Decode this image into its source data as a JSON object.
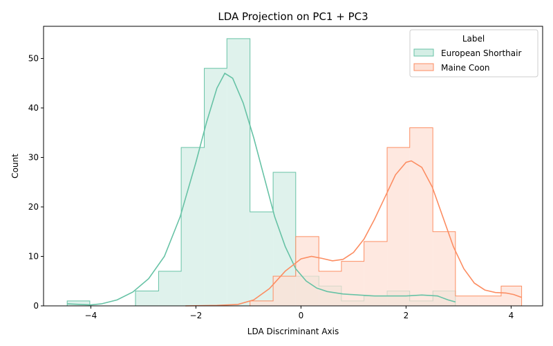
{
  "chart_data": {
    "type": "histogram",
    "title": "LDA Projection on PC1 + PC3",
    "xlabel": "LDA Discriminant Axis",
    "ylabel": "Count",
    "xlim": [
      -4.9,
      4.6
    ],
    "ylim": [
      0,
      56.5
    ],
    "xticks": [
      -4,
      -2,
      0,
      2,
      4
    ],
    "yticks": [
      0,
      10,
      20,
      30,
      40,
      50
    ],
    "grid": false,
    "legend": {
      "title": "Label",
      "placement": "top-right"
    },
    "series": [
      {
        "name": "European Shorthair",
        "color": "#66c2a5",
        "fill": "#d4eee5",
        "bin_edges": [
          -4.45,
          -4.02,
          -3.59,
          -3.15,
          -2.71,
          -2.28,
          -1.84,
          -1.41,
          -0.97,
          -0.53,
          -0.1,
          0.34,
          0.77,
          1.2,
          1.64,
          2.07,
          2.51,
          2.94
        ],
        "counts": [
          1,
          0,
          0,
          3,
          7,
          32,
          48,
          54,
          19,
          27,
          6,
          4,
          1,
          2,
          3,
          1,
          3
        ],
        "kde": [
          [
            -4.45,
            0.4
          ],
          [
            -4.2,
            0.3
          ],
          [
            -4.0,
            0.2
          ],
          [
            -3.8,
            0.4
          ],
          [
            -3.5,
            1.2
          ],
          [
            -3.2,
            2.8
          ],
          [
            -2.9,
            5.5
          ],
          [
            -2.6,
            10
          ],
          [
            -2.3,
            18
          ],
          [
            -2.0,
            29
          ],
          [
            -1.8,
            37
          ],
          [
            -1.6,
            44
          ],
          [
            -1.45,
            47
          ],
          [
            -1.3,
            46
          ],
          [
            -1.1,
            41
          ],
          [
            -0.9,
            34
          ],
          [
            -0.7,
            26
          ],
          [
            -0.5,
            18
          ],
          [
            -0.3,
            12
          ],
          [
            -0.1,
            7.5
          ],
          [
            0.1,
            5
          ],
          [
            0.3,
            3.6
          ],
          [
            0.5,
            2.9
          ],
          [
            0.8,
            2.4
          ],
          [
            1.1,
            2.2
          ],
          [
            1.4,
            2.0
          ],
          [
            1.7,
            2.0
          ],
          [
            2.0,
            2.0
          ],
          [
            2.3,
            2.2
          ],
          [
            2.6,
            2.0
          ],
          [
            2.8,
            1.2
          ],
          [
            2.94,
            0.8
          ]
        ]
      },
      {
        "name": "Maine Coon",
        "color": "#fc8d62",
        "fill": "#fde0d5",
        "bin_edges": [
          -0.97,
          -0.53,
          -0.1,
          0.34,
          0.77,
          1.2,
          1.64,
          2.07,
          2.51,
          2.94,
          3.38,
          3.81,
          4.2
        ],
        "counts": [
          1,
          6,
          14,
          7,
          9,
          13,
          32,
          36,
          15,
          2,
          2,
          4
        ],
        "kde": [
          [
            -2.2,
            0
          ],
          [
            -1.6,
            0.1
          ],
          [
            -1.2,
            0.3
          ],
          [
            -0.9,
            1.2
          ],
          [
            -0.6,
            3.5
          ],
          [
            -0.3,
            7
          ],
          [
            0.0,
            9.5
          ],
          [
            0.2,
            10
          ],
          [
            0.4,
            9.6
          ],
          [
            0.6,
            9.1
          ],
          [
            0.8,
            9.4
          ],
          [
            1.0,
            10.8
          ],
          [
            1.2,
            13.5
          ],
          [
            1.4,
            17.5
          ],
          [
            1.6,
            22
          ],
          [
            1.8,
            26.5
          ],
          [
            2.0,
            29
          ],
          [
            2.1,
            29.3
          ],
          [
            2.3,
            28
          ],
          [
            2.5,
            24
          ],
          [
            2.7,
            18
          ],
          [
            2.9,
            12
          ],
          [
            3.1,
            7.5
          ],
          [
            3.3,
            4.6
          ],
          [
            3.5,
            3.2
          ],
          [
            3.7,
            2.7
          ],
          [
            3.9,
            2.6
          ],
          [
            4.05,
            2.3
          ],
          [
            4.2,
            1.7
          ]
        ]
      }
    ]
  }
}
